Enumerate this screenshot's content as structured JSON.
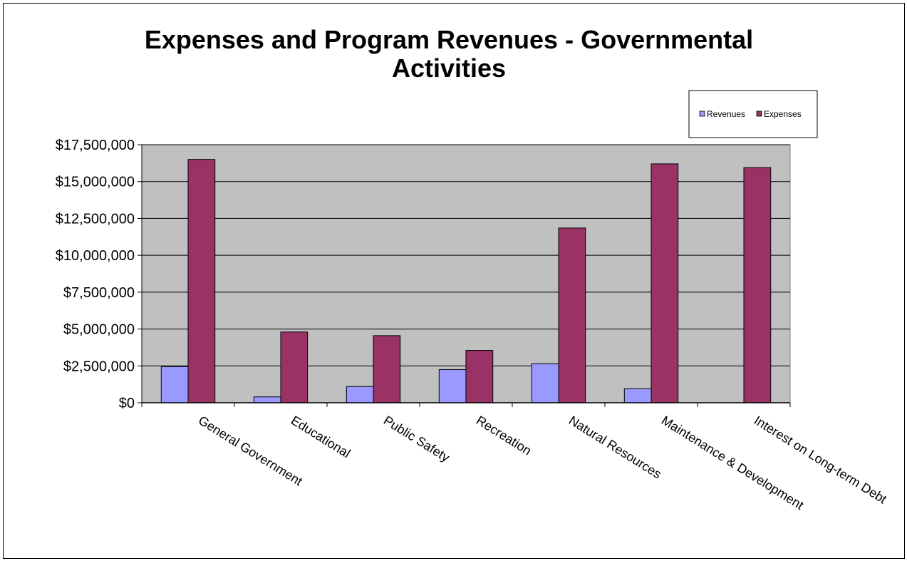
{
  "chart_data": {
    "type": "bar",
    "title": "Expenses and Program Revenues - Governmental Activities",
    "xlabel": "",
    "ylabel": "",
    "categories": [
      "General Government",
      "Educational",
      "Public Safety",
      "Recreation",
      "Natural Resources",
      "Maintenance & Development",
      "Interest on Long-term Debt"
    ],
    "series": [
      {
        "name": "Revenues",
        "color": "#9999ff",
        "values": [
          2450000,
          400000,
          1100000,
          2250000,
          2650000,
          950000,
          0
        ]
      },
      {
        "name": "Expenses",
        "color": "#993366",
        "values": [
          16500000,
          4800000,
          4550000,
          3550000,
          11850000,
          16200000,
          15950000
        ]
      }
    ],
    "ylim": [
      0,
      17500000
    ],
    "yticks": [
      0,
      2500000,
      5000000,
      7500000,
      10000000,
      12500000,
      15000000,
      17500000
    ],
    "ytick_labels": [
      "$0",
      "$2,500,000",
      "$5,000,000",
      "$7,500,000",
      "$10,000,000",
      "$12,500,000",
      "$15,000,000",
      "$17,500,000"
    ],
    "plot_background": "#c0c0c0",
    "grid": true,
    "legend_position": "top-right"
  }
}
